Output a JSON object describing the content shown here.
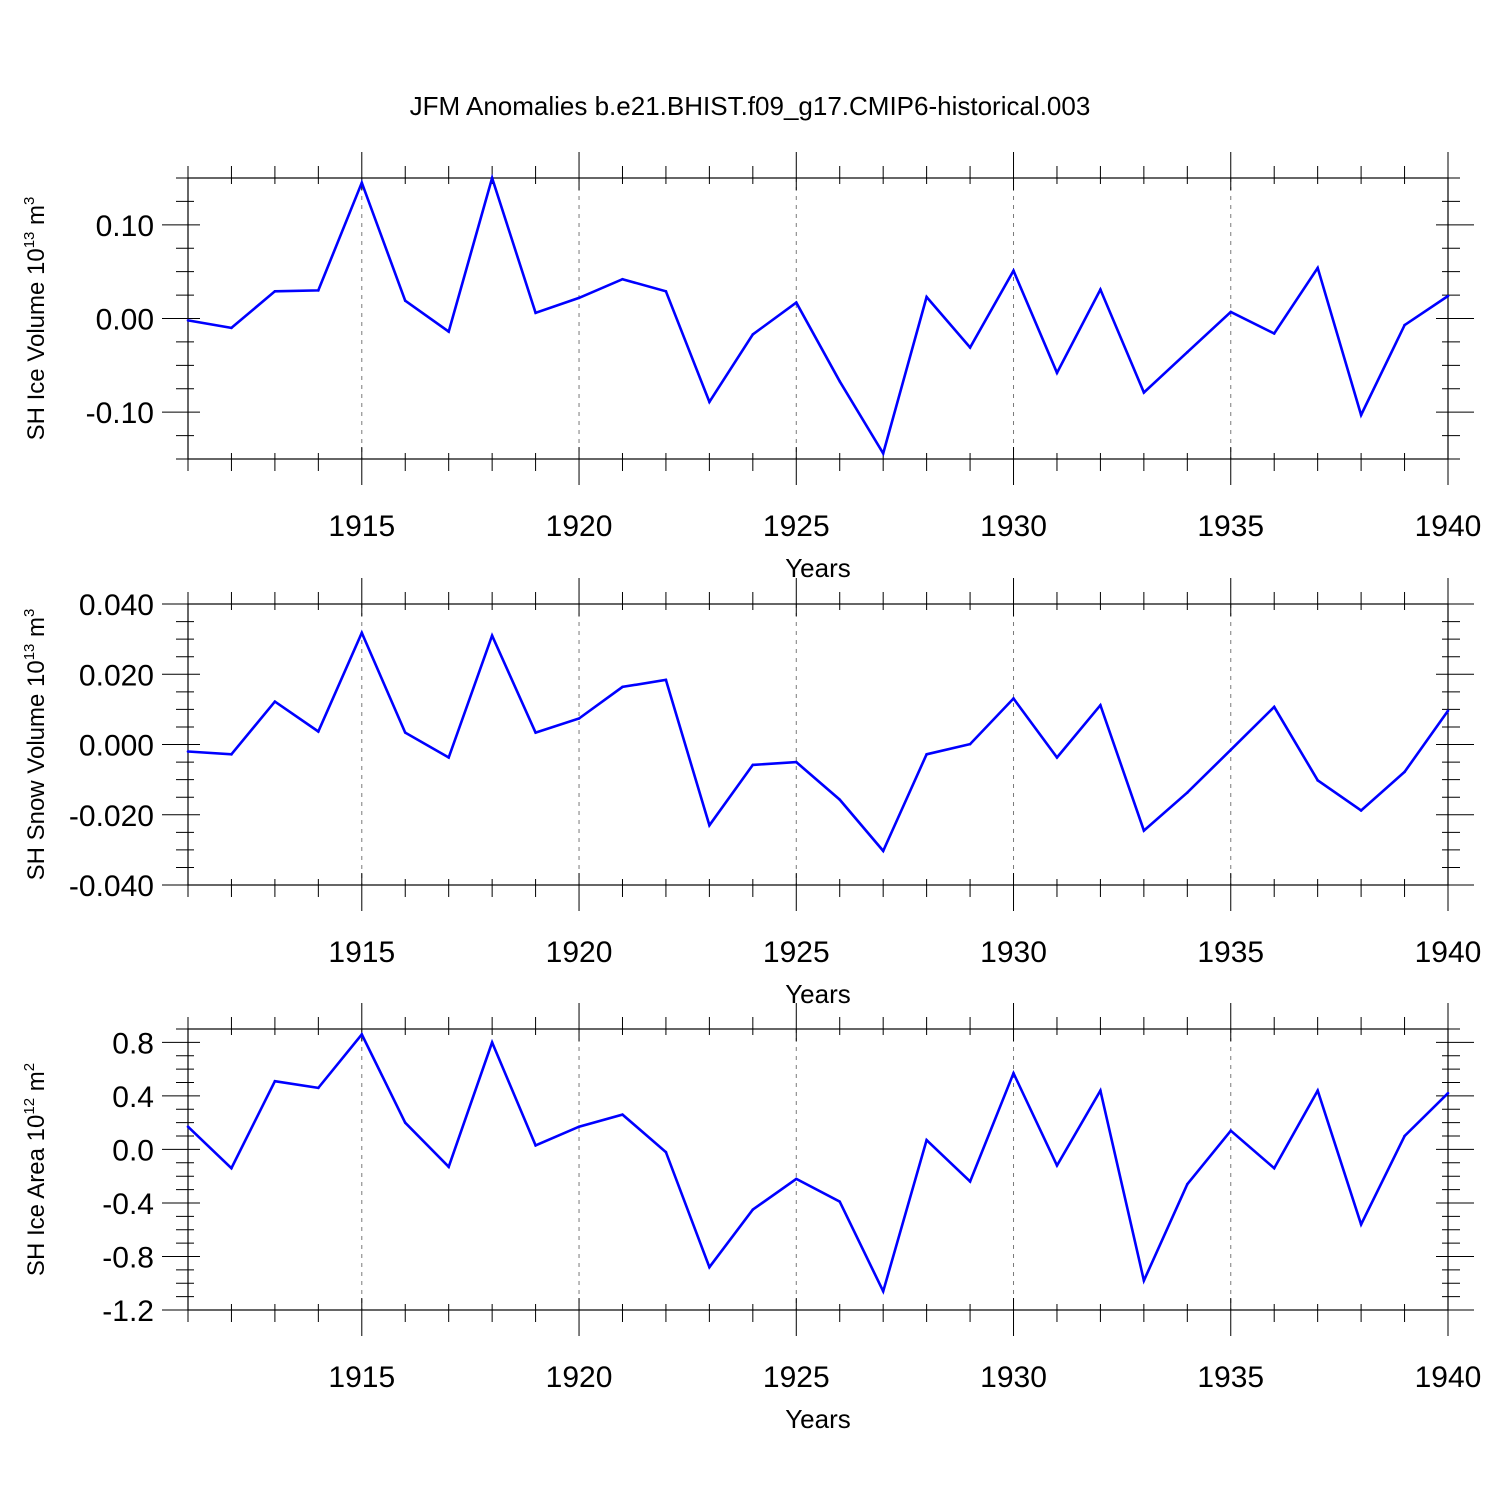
{
  "title": "JFM Anomalies b.e21.BHIST.f09_g17.CMIP6-historical.003",
  "colors": {
    "series": "#0000ff",
    "axis": "#000000",
    "grid": "#7a7a7a"
  },
  "chart_data": [
    {
      "type": "line",
      "ylabel": {
        "main": "SH Ice Volume 10",
        "sup": "13",
        "unit": " m",
        "unit_sup": "3"
      },
      "xlabel": "Years",
      "xlim": [
        1911,
        1940
      ],
      "ylim": [
        -0.15,
        0.15
      ],
      "xticks": [
        1915,
        1920,
        1925,
        1930,
        1935,
        1940
      ],
      "xtick_labels": [
        "1915",
        "1920",
        "1925",
        "1930",
        "1935",
        "1940"
      ],
      "yticks": [
        0.1,
        0.0,
        -0.1
      ],
      "ytick_labels": [
        "0.10",
        "0.00",
        "-0.10"
      ],
      "grid": "vertical dashed at major x ticks",
      "x": [
        1911,
        1912,
        1913,
        1914,
        1915,
        1916,
        1917,
        1918,
        1919,
        1920,
        1921,
        1922,
        1923,
        1924,
        1925,
        1926,
        1927,
        1928,
        1929,
        1930,
        1931,
        1932,
        1933,
        1934,
        1935,
        1936,
        1937,
        1938,
        1939,
        1940
      ],
      "series": [
        {
          "values": [
            -0.002,
            -0.01,
            0.029,
            0.03,
            0.145,
            0.019,
            -0.014,
            0.15,
            0.006,
            0.022,
            0.042,
            0.029,
            -0.089,
            -0.017,
            0.017,
            -0.067,
            -0.144,
            0.023,
            -0.031,
            0.051,
            -0.058,
            0.031,
            -0.079,
            -0.036,
            0.007,
            -0.016,
            0.054,
            -0.103,
            -0.007,
            0.024
          ]
        }
      ]
    },
    {
      "type": "line",
      "ylabel": {
        "main": "SH Snow Volume 10",
        "sup": "13",
        "unit": " m",
        "unit_sup": "3"
      },
      "xlabel": "Years",
      "xlim": [
        1911,
        1940
      ],
      "ylim": [
        -0.04,
        0.04
      ],
      "xticks": [
        1915,
        1920,
        1925,
        1930,
        1935,
        1940
      ],
      "xtick_labels": [
        "1915",
        "1920",
        "1925",
        "1930",
        "1935",
        "1940"
      ],
      "yticks": [
        0.04,
        0.02,
        0.0,
        -0.02,
        -0.04
      ],
      "ytick_labels": [
        "0.040",
        "0.020",
        "0.000",
        "-0.020",
        "-0.040"
      ],
      "grid": "vertical dashed at major x ticks",
      "x": [
        1911,
        1912,
        1913,
        1914,
        1915,
        1916,
        1917,
        1918,
        1919,
        1920,
        1921,
        1922,
        1923,
        1924,
        1925,
        1926,
        1927,
        1928,
        1929,
        1930,
        1931,
        1932,
        1933,
        1934,
        1935,
        1936,
        1937,
        1938,
        1939,
        1940
      ],
      "series": [
        {
          "values": [
            -0.002,
            -0.0028,
            0.0122,
            0.0037,
            0.0318,
            0.0034,
            -0.0037,
            0.031,
            0.0034,
            0.0074,
            0.0164,
            0.0184,
            -0.023,
            -0.0058,
            -0.005,
            -0.0157,
            -0.0303,
            -0.0028,
            0.0001,
            0.0131,
            -0.0037,
            0.0112,
            -0.0245,
            -0.0137,
            -0.0015,
            0.0107,
            -0.0102,
            -0.0188,
            -0.0078,
            0.0096
          ]
        }
      ]
    },
    {
      "type": "line",
      "ylabel": {
        "main": "SH Ice Area 10",
        "sup": "12",
        "unit": " m",
        "unit_sup": "2"
      },
      "xlabel": "Years",
      "xlim": [
        1911,
        1940
      ],
      "ylim": [
        -1.2,
        0.9
      ],
      "xticks": [
        1915,
        1920,
        1925,
        1930,
        1935,
        1940
      ],
      "xtick_labels": [
        "1915",
        "1920",
        "1925",
        "1930",
        "1935",
        "1940"
      ],
      "yticks": [
        0.8,
        0.4,
        0.0,
        -0.4,
        -0.8,
        -1.2
      ],
      "ytick_labels": [
        "0.8",
        "0.4",
        "0.0",
        "-0.4",
        "-0.8",
        "-1.2"
      ],
      "grid": "vertical dashed at major x ticks",
      "x": [
        1911,
        1912,
        1913,
        1914,
        1915,
        1916,
        1917,
        1918,
        1919,
        1920,
        1921,
        1922,
        1923,
        1924,
        1925,
        1926,
        1927,
        1928,
        1929,
        1930,
        1931,
        1932,
        1933,
        1934,
        1935,
        1936,
        1937,
        1938,
        1939,
        1940
      ],
      "series": [
        {
          "values": [
            0.17,
            -0.14,
            0.51,
            0.46,
            0.86,
            0.2,
            -0.13,
            0.8,
            0.03,
            0.17,
            0.26,
            -0.02,
            -0.88,
            -0.45,
            -0.22,
            -0.39,
            -1.06,
            0.07,
            -0.24,
            0.57,
            -0.12,
            0.44,
            -0.98,
            -0.26,
            0.14,
            -0.14,
            0.44,
            -0.56,
            0.1,
            0.42
          ]
        }
      ]
    }
  ]
}
